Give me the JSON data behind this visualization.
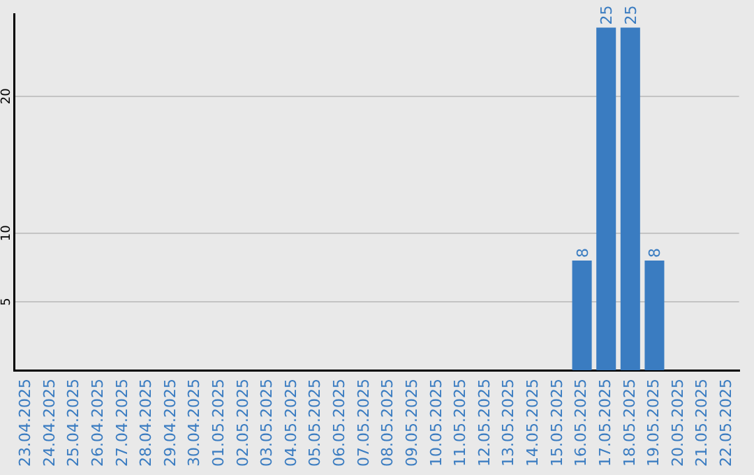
{
  "chart_data": {
    "type": "bar",
    "categories": [
      "23.04.2025",
      "24.04.2025",
      "25.04.2025",
      "26.04.2025",
      "27.04.2025",
      "28.04.2025",
      "29.04.2025",
      "30.04.2025",
      "01.05.2025",
      "02.05.2025",
      "03.05.2025",
      "04.05.2025",
      "05.05.2025",
      "06.05.2025",
      "07.05.2025",
      "08.05.2025",
      "09.05.2025",
      "10.05.2025",
      "11.05.2025",
      "12.05.2025",
      "13.05.2025",
      "14.05.2025",
      "15.05.2025",
      "16.05.2025",
      "17.05.2025",
      "18.05.2025",
      "19.05.2025",
      "20.05.2025",
      "21.05.2025",
      "22.05.2025"
    ],
    "values": [
      0,
      0,
      0,
      0,
      0,
      0,
      0,
      0,
      0,
      0,
      0,
      0,
      0,
      0,
      0,
      0,
      0,
      0,
      0,
      0,
      0,
      0,
      0,
      8,
      25,
      25,
      8,
      0,
      0,
      0
    ],
    "value_labels": [
      null,
      null,
      null,
      null,
      null,
      null,
      null,
      null,
      null,
      null,
      null,
      null,
      null,
      null,
      null,
      null,
      null,
      null,
      null,
      null,
      null,
      null,
      null,
      "8",
      "25",
      "25",
      "8",
      null,
      null,
      null
    ],
    "color": "#3a7cc1",
    "ylim": [
      0,
      26
    ],
    "yticks": [
      5,
      10,
      20
    ],
    "grid": "y",
    "legend": false
  }
}
